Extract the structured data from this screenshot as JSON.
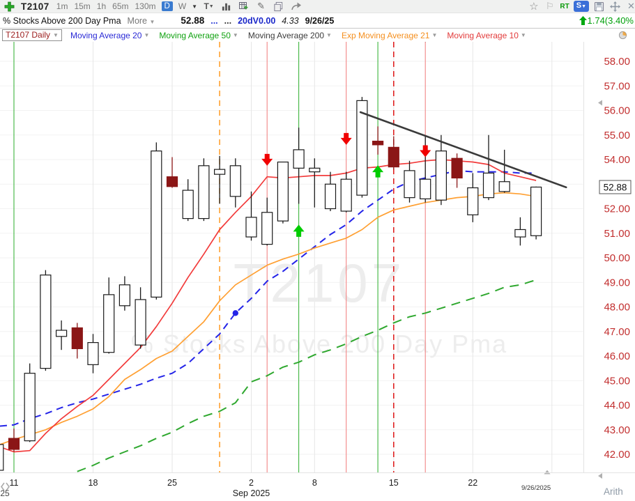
{
  "titlebar": {
    "symbol": "T2107",
    "timeframes": [
      "1m",
      "15m",
      "1h",
      "65m",
      "130m"
    ],
    "active_timeframe": "D",
    "weekly_label": "W",
    "template_label": "T",
    "right": {
      "rt_label": "RT",
      "s_button": "S"
    }
  },
  "quote_bar": {
    "name": "% Stocks Above 200 Day Pma",
    "more_label": "More",
    "last": "52.88",
    "dots1": "...",
    "dots2": "...",
    "volume_label": "20dV0.00",
    "extra_value": "4.33",
    "date": "9/26/25",
    "change": "1.74(3.40%"
  },
  "indicator_bar": {
    "symbol_period": "T2107 Daily",
    "indicators": [
      {
        "label": "Moving Average 20",
        "color": "#2929d6"
      },
      {
        "label": "Moving Average 50",
        "color": "#11a211"
      },
      {
        "label": "Moving Average 200",
        "color": "#3c3c3c"
      },
      {
        "label": "Exp Moving Average 21",
        "color": "#f58f1e"
      },
      {
        "label": "Moving Average 10",
        "color": "#e23b3b"
      }
    ]
  },
  "chart_data": {
    "type": "candlestick",
    "symbol": "T2107",
    "watermark_line1": "T2107",
    "watermark_line2": "% Stocks Above 200 Day Pma",
    "scale_label": "Arith",
    "y_axis": {
      "min": 42,
      "max": 58,
      "step": 1,
      "hidden_label": 53,
      "last_price": 52.88,
      "label_color": "#c22f2f"
    },
    "x_axis": {
      "ticks": [
        {
          "index": 0,
          "label": "11"
        },
        {
          "index": 5,
          "label": "18"
        },
        {
          "index": 10,
          "label": "25"
        },
        {
          "index": 15,
          "label": "2"
        },
        {
          "index": 19,
          "label": "8"
        },
        {
          "index": 24,
          "label": "15"
        },
        {
          "index": 29,
          "label": "22"
        }
      ],
      "month_label": {
        "index": 15,
        "label": "Sep 2025"
      },
      "last_date": {
        "index": 33,
        "label": "9/26/2025"
      },
      "partial_year_label": "2025",
      "grid_indices": [
        5,
        10,
        15,
        19,
        24,
        29,
        34
      ]
    },
    "candles": [
      {
        "date": "8/8",
        "o": 41.35,
        "h": 42.95,
        "l": 41.3,
        "c": 42.4,
        "partial": true
      },
      {
        "date": "8/11",
        "o": 42.65,
        "h": 43.05,
        "l": 42.1,
        "c": 42.2
      },
      {
        "date": "8/12",
        "o": 42.55,
        "h": 45.7,
        "l": 42.5,
        "c": 45.3
      },
      {
        "date": "8/13",
        "o": 45.5,
        "h": 49.5,
        "l": 45.4,
        "c": 49.3
      },
      {
        "date": "8/14",
        "o": 46.8,
        "h": 47.45,
        "l": 46.25,
        "c": 47.05
      },
      {
        "date": "8/15",
        "o": 47.15,
        "h": 47.35,
        "l": 45.9,
        "c": 46.3
      },
      {
        "date": "8/18",
        "o": 45.65,
        "h": 46.9,
        "l": 45.3,
        "c": 46.55
      },
      {
        "date": "8/19",
        "o": 46.15,
        "h": 49.2,
        "l": 46.1,
        "c": 48.5
      },
      {
        "date": "8/20",
        "o": 48.05,
        "h": 49.25,
        "l": 47.85,
        "c": 48.9
      },
      {
        "date": "8/21",
        "o": 46.45,
        "h": 48.8,
        "l": 46.3,
        "c": 48.3
      },
      {
        "date": "8/22",
        "o": 48.4,
        "h": 54.7,
        "l": 48.3,
        "c": 54.35
      },
      {
        "date": "8/25",
        "o": 53.3,
        "h": 54.1,
        "l": 52.85,
        "c": 52.9
      },
      {
        "date": "8/26",
        "o": 51.6,
        "h": 53.2,
        "l": 51.5,
        "c": 52.75
      },
      {
        "date": "8/27",
        "o": 51.6,
        "h": 54.05,
        "l": 51.5,
        "c": 53.75
      },
      {
        "date": "8/28",
        "o": 53.4,
        "h": 54.15,
        "l": 52.2,
        "c": 53.6
      },
      {
        "date": "8/29",
        "o": 52.5,
        "h": 54.05,
        "l": 52.05,
        "c": 53.75
      },
      {
        "date": "9/2",
        "o": 50.85,
        "h": 52.7,
        "l": 50.7,
        "c": 51.65
      },
      {
        "date": "9/3",
        "o": 50.55,
        "h": 52.45,
        "l": 50.5,
        "c": 51.85
      },
      {
        "date": "9/4",
        "o": 51.5,
        "h": 53.9,
        "l": 51.4,
        "c": 53.9
      },
      {
        "date": "9/5",
        "o": 53.65,
        "h": 55.3,
        "l": 52.2,
        "c": 54.4
      },
      {
        "date": "9/8",
        "o": 53.5,
        "h": 54.05,
        "l": 52.05,
        "c": 53.65
      },
      {
        "date": "9/9",
        "o": 52.0,
        "h": 53.5,
        "l": 51.9,
        "c": 53.0
      },
      {
        "date": "9/10",
        "o": 51.9,
        "h": 53.5,
        "l": 51.85,
        "c": 53.2
      },
      {
        "date": "9/11",
        "o": 52.55,
        "h": 56.55,
        "l": 52.45,
        "c": 56.4
      },
      {
        "date": "9/12",
        "o": 54.75,
        "h": 55.35,
        "l": 54.2,
        "c": 54.6
      },
      {
        "date": "9/15",
        "o": 54.5,
        "h": 54.95,
        "l": 53.6,
        "c": 53.7
      },
      {
        "date": "9/16",
        "o": 52.45,
        "h": 53.95,
        "l": 52.25,
        "c": 53.55
      },
      {
        "date": "9/17",
        "o": 52.4,
        "h": 54.95,
        "l": 52.25,
        "c": 53.2
      },
      {
        "date": "9/18",
        "o": 52.35,
        "h": 55.0,
        "l": 52.15,
        "c": 54.35
      },
      {
        "date": "9/19",
        "o": 54.05,
        "h": 54.25,
        "l": 52.85,
        "c": 53.25
      },
      {
        "date": "9/22",
        "o": 51.75,
        "h": 53.45,
        "l": 51.45,
        "c": 52.85
      },
      {
        "date": "9/23",
        "o": 52.45,
        "h": 55.0,
        "l": 52.35,
        "c": 53.45
      },
      {
        "date": "9/24",
        "o": 52.7,
        "h": 54.4,
        "l": 52.65,
        "c": 53.1
      },
      {
        "date": "9/25",
        "o": 50.85,
        "h": 51.65,
        "l": 50.5,
        "c": 51.15
      },
      {
        "date": "9/26",
        "o": 50.9,
        "h": 52.9,
        "l": 50.75,
        "c": 52.88
      }
    ],
    "moving_averages": {
      "ma10": {
        "name": "Moving Average 10",
        "color": "#f23b3b",
        "style": "solid",
        "pre": 42.3,
        "values": [
          42.1,
          42.15,
          42.85,
          43.45,
          43.95,
          44.4,
          45.05,
          45.7,
          46.35,
          47.2,
          48.15,
          49.2,
          50.15,
          51.15,
          51.85,
          52.5,
          53.3,
          53.25,
          53.3,
          53.35,
          53.35,
          53.45,
          53.65,
          53.7,
          53.8,
          53.85,
          53.95,
          54.0,
          53.95,
          53.9,
          53.8,
          53.45,
          53.3,
          53.15
        ]
      },
      "ema21": {
        "name": "Exp Moving Average 21",
        "color": "#ffa033",
        "style": "solid",
        "pre": 42.4,
        "values": [
          42.6,
          42.8,
          43.0,
          43.3,
          43.55,
          43.85,
          44.35,
          45.05,
          45.45,
          45.9,
          46.2,
          46.8,
          47.4,
          48.25,
          48.9,
          49.3,
          49.7,
          49.95,
          50.15,
          50.4,
          50.6,
          50.8,
          51.15,
          51.65,
          51.95,
          52.1,
          52.25,
          52.35,
          52.45,
          52.5,
          52.6,
          52.65,
          52.6,
          52.5
        ]
      },
      "ma20": {
        "name": "Moving Average 20",
        "color": "#2424e8",
        "style": "dashed",
        "pre": 43.15,
        "values": [
          43.2,
          43.45,
          43.65,
          43.9,
          44.1,
          44.25,
          44.45,
          44.65,
          44.85,
          45.1,
          45.3,
          45.7,
          46.3,
          46.9,
          47.75,
          48.35,
          49.05,
          49.45,
          49.95,
          50.45,
          50.95,
          51.35,
          51.9,
          52.35,
          52.8,
          53.1,
          53.25,
          53.4,
          53.55,
          53.5,
          53.5,
          53.5,
          53.45,
          53.45
        ]
      },
      "ma50": {
        "name": "Moving Average 50",
        "color": "#2fa82f",
        "style": "dashed",
        "start_index": 4,
        "values": [
          41.3,
          41.55,
          41.85,
          42.1,
          42.35,
          42.65,
          42.9,
          43.25,
          43.55,
          43.75,
          44.1,
          44.95,
          45.2,
          45.55,
          45.75,
          46.05,
          46.25,
          46.5,
          46.8,
          47.05,
          47.35,
          47.6,
          47.75,
          47.95,
          48.15,
          48.35,
          48.55,
          48.8,
          48.9,
          49.1
        ]
      }
    },
    "marker_dot": {
      "index": 14,
      "value": 47.75,
      "color": "#2424e8"
    },
    "trendline": {
      "i1": 21.9,
      "v1": 55.93,
      "i2": 34.9,
      "v2": 52.87,
      "color": "#3a3a3a"
    },
    "event_lines": [
      {
        "index": 0,
        "color": "green",
        "style": "solid"
      },
      {
        "index": 13,
        "color": "orange",
        "style": "dashed"
      },
      {
        "index": 16,
        "color": "red",
        "style": "solid"
      },
      {
        "index": 18,
        "color": "green",
        "style": "solid"
      },
      {
        "index": 21,
        "color": "red",
        "style": "solid"
      },
      {
        "index": 23,
        "color": "green",
        "style": "solid"
      },
      {
        "index": 24,
        "color": "red-dark",
        "style": "dashed"
      },
      {
        "index": 26,
        "color": "red",
        "style": "solid"
      }
    ],
    "arrows": [
      {
        "index": 16,
        "value": 53.75,
        "dir": "down",
        "color": "#f00000"
      },
      {
        "index": 18,
        "value": 51.35,
        "dir": "up",
        "color": "#00cc00"
      },
      {
        "index": 21,
        "value": 54.6,
        "dir": "down",
        "color": "#f00000"
      },
      {
        "index": 23,
        "value": 53.77,
        "dir": "up",
        "color": "#00cc00"
      },
      {
        "index": 26,
        "value": 54.1,
        "dir": "down",
        "color": "#f00000"
      }
    ],
    "layout": {
      "grid": true,
      "candle_up_fill": "#ffffff",
      "candle_down_fill": "#8b1616",
      "watermark_color": "#ededed"
    }
  }
}
